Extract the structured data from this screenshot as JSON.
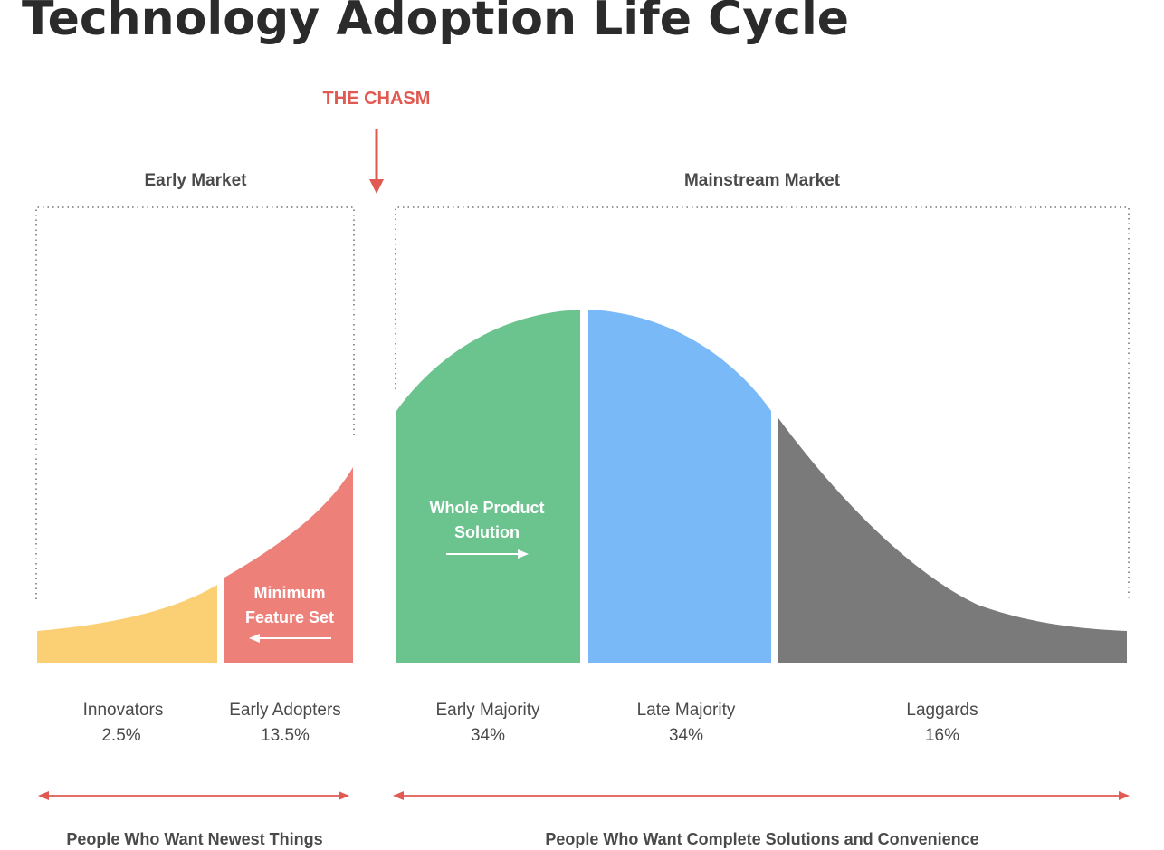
{
  "title": "Technology Adoption Life Cycle",
  "chasm_label": "THE CHASM",
  "markets": {
    "early": "Early Market",
    "mainstream": "Mainstream Market"
  },
  "overlays": {
    "whole_product": [
      "Whole Product",
      "Solution"
    ],
    "minimum_feature": [
      "Minimum",
      "Feature Set"
    ]
  },
  "segments": [
    {
      "name": "Innovators",
      "percent": "2.5%",
      "color": "#fbcf74"
    },
    {
      "name": "Early Adopters",
      "percent": "13.5%",
      "color": "#ed8079"
    },
    {
      "name": "Early Majority",
      "percent": "34%",
      "color": "#6bc38e"
    },
    {
      "name": "Late Majority",
      "percent": "34%",
      "color": "#7ab9f7"
    },
    {
      "name": "Laggards",
      "percent": "16%",
      "color": "#7a7a7a"
    }
  ],
  "bottom": {
    "left": "People Who Want Newest Things",
    "right": "People Who Want Complete Solutions and Convenience"
  },
  "colors": {
    "accent": "#e05a52",
    "text": "#4a4a4a",
    "title": "#2b2b2b",
    "dotted": "#777777"
  }
}
